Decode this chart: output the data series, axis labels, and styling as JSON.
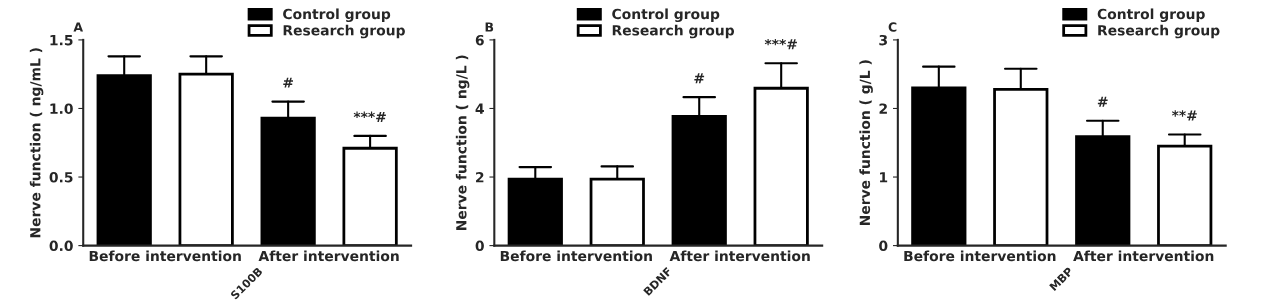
{
  "chart_data": [
    {
      "type": "bar",
      "title": "A",
      "xlabel": "S100B",
      "ylabel": "Nerve function ( ng/mL )",
      "categories": [
        "Before intervention",
        "After intervention"
      ],
      "series": [
        {
          "name": "Control group",
          "color": "#000000",
          "values": [
            1.24,
            0.93
          ],
          "errors": [
            [
              1.24,
              1.38
            ],
            [
              0.93,
              1.05
            ]
          ]
        },
        {
          "name": "Research group",
          "color": "#ffffff",
          "values": [
            1.25,
            0.71
          ],
          "errors": [
            [
              1.25,
              1.38
            ],
            [
              0.71,
              0.8
            ]
          ]
        }
      ],
      "ylim": [
        0,
        1.5
      ],
      "yticks": [
        {
          "value": 0,
          "label": "0.0"
        },
        {
          "value": 0.5,
          "label": "0.5"
        },
        {
          "value": 1,
          "label": "1.0"
        },
        {
          "value": 1.5,
          "label": "1.5"
        }
      ],
      "annotations": [
        "#",
        "***#"
      ],
      "legend": "top right",
      "grid": false
    },
    {
      "type": "bar",
      "title": "B",
      "xlabel": "BDNF",
      "ylabel": "Nerve function ( ng/L )",
      "categories": [
        "Before intervention",
        "After intervention"
      ],
      "series": [
        {
          "name": "Control group",
          "color": "#000000",
          "values": [
            1.94,
            3.77
          ],
          "errors": [
            [
              1.94,
              2.29
            ],
            [
              3.77,
              4.33
            ]
          ]
        },
        {
          "name": "Research group",
          "color": "#ffffff",
          "values": [
            1.94,
            4.59
          ],
          "errors": [
            [
              1.94,
              2.31
            ],
            [
              4.59,
              5.32
            ]
          ]
        }
      ],
      "ylim": [
        0,
        6
      ],
      "yticks": [
        0,
        2,
        4,
        6
      ],
      "annotations": [
        "#",
        "***#"
      ],
      "legend": "top",
      "grid": false
    },
    {
      "type": "bar",
      "title": "C",
      "xlabel": "MBP",
      "ylabel": "Nerve function ( g/L )",
      "categories": [
        "Before intervention",
        "After intervention"
      ],
      "series": [
        {
          "name": "Control group",
          "color": "#000000",
          "values": [
            2.3,
            1.59
          ],
          "errors": [
            [
              2.3,
              2.61
            ],
            [
              1.59,
              1.82
            ]
          ]
        },
        {
          "name": "Research group",
          "color": "#ffffff",
          "values": [
            2.28,
            1.45
          ],
          "errors": [
            [
              2.28,
              2.58
            ],
            [
              1.45,
              1.62
            ]
          ]
        }
      ],
      "ylim": [
        0,
        3
      ],
      "yticks": [
        0,
        1,
        2,
        3
      ],
      "annotations": [
        "#",
        "**#"
      ],
      "legend": "top right",
      "grid": false
    }
  ]
}
